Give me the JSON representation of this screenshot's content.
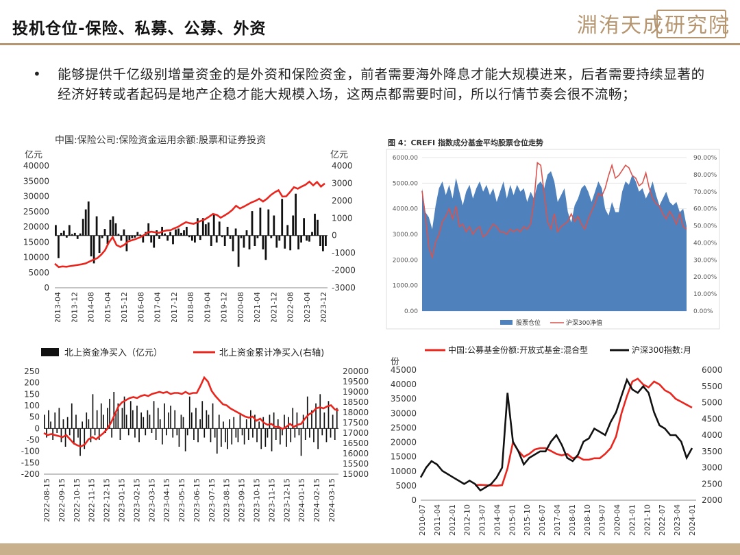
{
  "page": {
    "title": "投机仓位-保险、私募、公募、外资",
    "logo_text": "淵洧天成研究院"
  },
  "bullet_text": "能够提供千亿级别增量资金的是外资和保险资金，前者需要海外降息才能大规模进来，后者需要持续显著的经济好转或者起码是地产企稳才能大规模入场，这两点都需要时间，所以行情节奏会很不流畅；",
  "colors": {
    "red": "#e8261e",
    "black": "#111111",
    "blue": "#4f81bd",
    "gold": "#b69670"
  },
  "chart_data": [
    {
      "type": "bar+line",
      "title": "中国:保险公司:保险资金运用余额:股票和证券投资",
      "left_unit": "亿元",
      "right_unit": "亿元",
      "yleft": [
        0,
        40000
      ],
      "yleft_ticks": [
        "0",
        "5000",
        "10000",
        "15000",
        "20000",
        "25000",
        "30000",
        "35000",
        "40000"
      ],
      "yright": [
        -3000,
        4000
      ],
      "yright_ticks": [
        "-3000",
        "-2000",
        "-1000",
        "0",
        "1000",
        "2000",
        "3000",
        "4000"
      ],
      "xticks": [
        "2013-04",
        "2013-12",
        "2014-08",
        "2015-04",
        "2015-12",
        "2016-08",
        "2017-04",
        "2017-12",
        "2018-08",
        "2019-04",
        "2019-12",
        "2020-08",
        "2021-04",
        "2021-12",
        "2022-08",
        "2023-04",
        "2023-12"
      ],
      "bars_right_axis": [
        600,
        -1300,
        150,
        280,
        -120,
        600,
        80,
        150,
        -200,
        120,
        950,
        1500,
        1950,
        -1200,
        -1600,
        1100,
        -1000,
        -150,
        380,
        -500,
        900,
        1100,
        700,
        100,
        -300,
        350,
        -900,
        -250,
        -150,
        -120,
        200,
        50,
        -400,
        200,
        700,
        -400,
        -700,
        300,
        -200,
        500,
        120,
        -300,
        200,
        -500,
        350,
        400,
        150,
        300,
        500,
        -100,
        -300,
        -400,
        1000,
        -250,
        1000,
        650,
        750,
        -600,
        1250,
        -400,
        800,
        -100,
        -600,
        500,
        -200,
        -900,
        400,
        -1800,
        -150,
        -700,
        300,
        -800,
        1400,
        -600,
        -150,
        1600,
        -800,
        -1400,
        1500,
        -150,
        1150,
        -700,
        -300,
        2100,
        -750,
        600,
        -850,
        1150,
        2400,
        -800,
        -400,
        1000,
        -300,
        -350,
        200,
        1250,
        900,
        -600,
        -900,
        -600
      ],
      "line_left_axis": [
        7900,
        6800,
        7000,
        6900,
        7100,
        7300,
        7500,
        7700,
        8000,
        8600,
        9200,
        9700,
        10800,
        12300,
        14800,
        16600,
        14000,
        13400,
        14100,
        15200,
        15600,
        16000,
        16500,
        17200,
        18100,
        18400,
        18200,
        18000,
        18500,
        18800,
        18900,
        19500,
        20000,
        20800,
        21500,
        21200,
        21000,
        21500,
        22000,
        22500,
        23300,
        24200,
        23900,
        23000,
        23700,
        24500,
        25500,
        26900,
        26000,
        26600,
        27300,
        28000,
        28500,
        29200,
        28300,
        29200,
        30400,
        31300,
        32000,
        29900,
        30000,
        31400,
        33000,
        32500,
        33200,
        33800,
        34800,
        33600,
        34700,
        33200,
        34200
      ],
      "legend": []
    },
    {
      "type": "area+line",
      "title": "图 4：CREFI 指数成分基金平均股票仓位走势",
      "yleft": [
        0,
        6000
      ],
      "yleft_ticks": [
        "0.00",
        "1000.00",
        "2000.00",
        "3000.00",
        "4000.00",
        "5000.00",
        "6000.00"
      ],
      "yright": [
        0,
        90
      ],
      "yright_ticks": [
        "0.00%",
        "10.00%",
        "20.00%",
        "30.00%",
        "40.00%",
        "50.00%",
        "60.00%",
        "70.00%",
        "80.00%",
        "90.00%"
      ],
      "area_right_axis": [
        72,
        58,
        55,
        48,
        62,
        72,
        76,
        68,
        74,
        66,
        78,
        70,
        62,
        70,
        74,
        66,
        72,
        76,
        70,
        74,
        68,
        72,
        64,
        70,
        76,
        66,
        74,
        68,
        74,
        70,
        72,
        64,
        70,
        66,
        74,
        76,
        72,
        80,
        82,
        76,
        64,
        68,
        72,
        58,
        52,
        62,
        66,
        72,
        74,
        70,
        64,
        70,
        76,
        72,
        60,
        56,
        64,
        58,
        58,
        70,
        76,
        74,
        80,
        76,
        70,
        72,
        66,
        70,
        76,
        68,
        62,
        66,
        70,
        64,
        62,
        64,
        58,
        60,
        50
      ],
      "line_left_axis": [
        4700,
        3700,
        2500,
        2100,
        2700,
        3000,
        3500,
        3700,
        4000,
        3600,
        4100,
        3300,
        3400,
        3100,
        3300,
        3000,
        3200,
        3300,
        2900,
        3000,
        3200,
        3400,
        3300,
        3100,
        3100,
        3000,
        3200,
        3100,
        3200,
        3100,
        3300,
        3200,
        3400,
        4300,
        5800,
        5700,
        4600,
        3500,
        3200,
        3800,
        3100,
        3300,
        3400,
        3500,
        3800,
        3500,
        3700,
        3400,
        3200,
        3600,
        3900,
        4200,
        4600,
        4500,
        4800,
        5300,
        5700,
        5200,
        5300,
        5500,
        5700,
        5600,
        5300,
        5200,
        4900,
        5000,
        5400,
        4800,
        4400,
        4200,
        4100,
        3800,
        3600,
        3900,
        3700,
        3400,
        3800,
        3300,
        3200
      ],
      "legend": [
        "股票仓位",
        "沪深300净值"
      ]
    },
    {
      "type": "bar+line",
      "title": "",
      "yleft": [
        -200,
        250
      ],
      "yleft_ticks": [
        "-200",
        "-150",
        "-100",
        "-50",
        "0",
        "50",
        "100",
        "150",
        "200",
        "250"
      ],
      "yright": [
        15000,
        20000
      ],
      "yright_ticks": [
        "15000",
        "15500",
        "16000",
        "16500",
        "17000",
        "17500",
        "18000",
        "18500",
        "19000",
        "19500",
        "20000"
      ],
      "xticks": [
        "2022-08-15",
        "2022-09-15",
        "2022-10-15",
        "2022-11-15",
        "2022-12-15",
        "2023-01-15",
        "2023-02-15",
        "2023-03-15",
        "2023-04-15",
        "2023-05-15",
        "2023-06-15",
        "2023-07-15",
        "2023-08-15",
        "2023-09-15",
        "2023-10-15",
        "2023-11-15",
        "2023-12-15",
        "2024-01-15",
        "2024-02-15",
        "2024-03-15"
      ],
      "bars_left_axis": [
        60,
        -40,
        80,
        30,
        -50,
        70,
        -20,
        90,
        -60,
        40,
        -80,
        50,
        -30,
        110,
        -70,
        60,
        -40,
        -120,
        30,
        -90,
        70,
        40,
        -60,
        150,
        -30,
        80,
        -50,
        110,
        60,
        -20,
        90,
        130,
        -40,
        160,
        70,
        110,
        -50,
        90,
        140,
        60,
        -30,
        120,
        80,
        -40,
        100,
        -60,
        70,
        50,
        -30,
        80,
        60,
        -20,
        120,
        -50,
        90,
        40,
        -70,
        110,
        -30,
        70,
        100,
        -40,
        80,
        -30,
        -80,
        60,
        50,
        -100,
        -30,
        140,
        70,
        -50,
        90,
        -60,
        40,
        120,
        -40,
        80,
        60,
        -60,
        110,
        -40,
        -110,
        60,
        -80,
        30,
        -60,
        -90,
        40,
        -70,
        50,
        -40,
        -60,
        60,
        -30,
        -70,
        40,
        -50,
        80,
        -40,
        60,
        -60,
        30,
        -90,
        50,
        -80,
        -40,
        60,
        -100,
        70,
        -50,
        40,
        -70,
        -30,
        60,
        -80,
        50,
        -60,
        90,
        -40,
        70,
        -30,
        -120,
        60,
        -50,
        140,
        -40,
        80,
        -60,
        110,
        -90,
        150,
        -30,
        70,
        -60,
        120,
        -40,
        60,
        -50,
        90
      ],
      "line_right_axis": [
        17000,
        16900,
        16950,
        16900,
        16850,
        16800,
        16900,
        16700,
        16500,
        16400,
        16350,
        16450,
        16700,
        16800,
        16700,
        16850,
        17000,
        17200,
        17500,
        17900,
        18300,
        18500,
        18600,
        18700,
        18750,
        18700,
        18800,
        18850,
        18800,
        18900,
        18950,
        19000,
        18950,
        19000,
        18900,
        18950,
        18950,
        18900,
        19000,
        18900,
        18950,
        18950,
        19300,
        19700,
        19500,
        19050,
        18800,
        18600,
        18400,
        18350,
        18200,
        18100,
        18000,
        17900,
        17800,
        17750,
        17800,
        17600,
        17700,
        17500,
        17400,
        17450,
        17300,
        17300,
        17200,
        17300,
        17450,
        17300,
        17400,
        17450,
        17700,
        17900,
        18000,
        18200,
        18250,
        18200,
        18300,
        18350,
        18150,
        18100
      ],
      "legend": [
        "北上资金净买入（亿元）",
        "北上资金累计净买入(右轴)"
      ]
    },
    {
      "type": "line",
      "title": "",
      "left_unit": "份",
      "yleft": [
        0,
        45000
      ],
      "yleft_ticks": [
        "0",
        "5000",
        "10000",
        "15000",
        "20000",
        "25000",
        "30000",
        "35000",
        "40000",
        "45000"
      ],
      "yright": [
        2000,
        6000
      ],
      "yright_ticks": [
        "2000",
        "2500",
        "3000",
        "3500",
        "4000",
        "4500",
        "5000",
        "5500",
        "6000"
      ],
      "xticks": [
        "2010-07",
        "2011-04",
        "2012-01",
        "2012-10",
        "2013-07",
        "2014-04",
        "2015-01",
        "2015-10",
        "2016-07",
        "2017-04",
        "2018-01",
        "2018-10",
        "2019-07",
        "2020-04",
        "2021-01",
        "2021-10",
        "2022-07",
        "2023-04",
        "2024-01"
      ],
      "series": [
        {
          "name": "中国:公募基金份额:开放式基金:混合型",
          "color": "red",
          "axis": "left",
          "values": [
            null,
            null,
            null,
            null,
            null,
            null,
            null,
            null,
            null,
            null,
            5200,
            5300,
            5200,
            5100,
            5000,
            5200,
            11000,
            20000,
            17000,
            15000,
            16000,
            17500,
            18000,
            18000,
            17000,
            16000,
            15500,
            16000,
            14500,
            15000,
            14000,
            14000,
            14500,
            14500,
            16000,
            18000,
            22000,
            30000,
            36000,
            41000,
            42000,
            40000,
            39000,
            41000,
            40000,
            38000,
            37000,
            35000,
            34000,
            33000,
            32000
          ]
        },
        {
          "name": "沪深300指数:月",
          "color": "black",
          "axis": "right",
          "values": [
            2700,
            3000,
            3200,
            3100,
            2900,
            2800,
            2700,
            2600,
            2500,
            2600,
            2500,
            2300,
            2400,
            2500,
            2700,
            3000,
            5300,
            3800,
            3500,
            3100,
            3300,
            3400,
            3500,
            3500,
            3800,
            4000,
            3700,
            3300,
            3200,
            3400,
            3800,
            3900,
            4200,
            4100,
            4000,
            4400,
            4700,
            5200,
            5700,
            5400,
            5300,
            5500,
            5300,
            4700,
            4300,
            4200,
            4000,
            4000,
            3800,
            3300,
            3600
          ]
        }
      ],
      "legend": [
        "中国:公募基金份额:开放式基金:混合型",
        "沪深300指数:月"
      ]
    }
  ]
}
